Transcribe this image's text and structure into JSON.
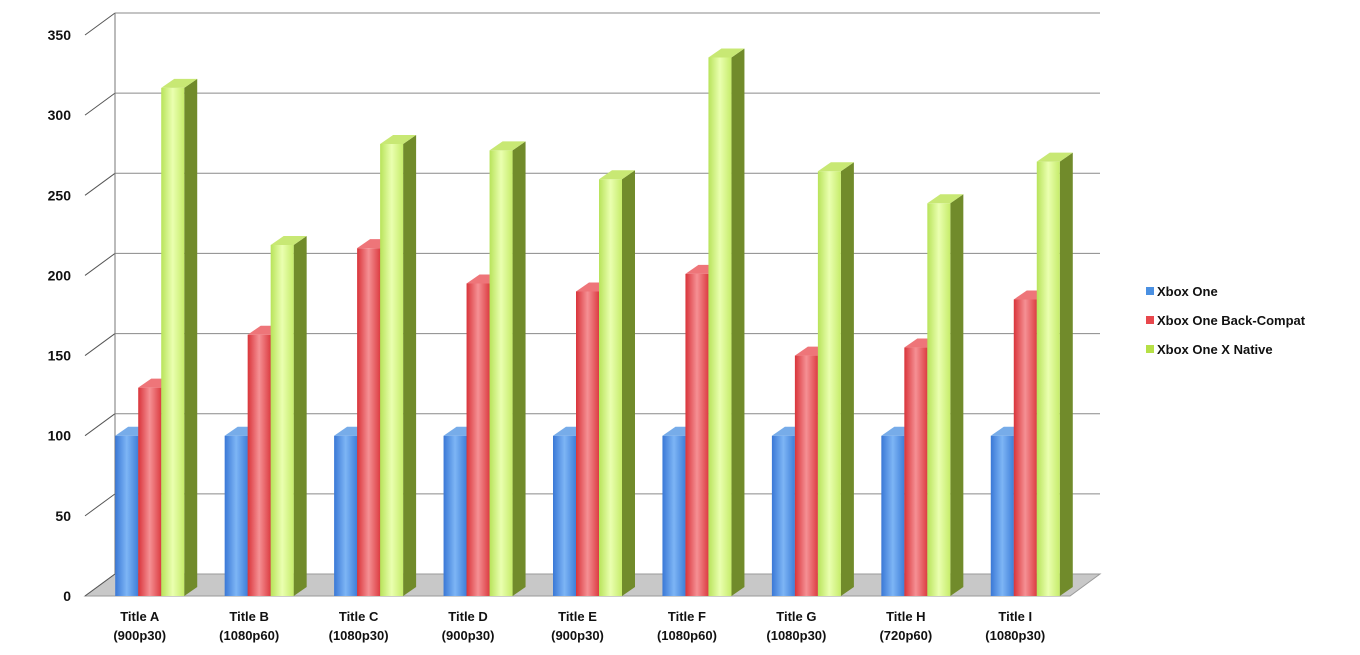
{
  "chart_data": {
    "type": "bar",
    "style": "3d-clustered-column",
    "title": "",
    "xlabel": "",
    "ylabel": "",
    "ylim": [
      0,
      350
    ],
    "yticks": [
      0,
      50,
      100,
      150,
      200,
      250,
      300,
      350
    ],
    "grid": true,
    "legend_position": "right",
    "categories": [
      {
        "name": "Title A",
        "sub": "(900p30)"
      },
      {
        "name": "Title B",
        "sub": "(1080p60)"
      },
      {
        "name": "Title C",
        "sub": "(1080p30)"
      },
      {
        "name": "Title D",
        "sub": "(900p30)"
      },
      {
        "name": "Title E",
        "sub": "(900p30)"
      },
      {
        "name": "Title F",
        "sub": "(1080p60)"
      },
      {
        "name": "Title G",
        "sub": "(1080p30)"
      },
      {
        "name": "Title H",
        "sub": "(720p60)"
      },
      {
        "name": "Title I",
        "sub": "(1080p30)"
      }
    ],
    "series": [
      {
        "name": "Xbox One",
        "color": "#4a90e2",
        "values": [
          100,
          100,
          100,
          100,
          100,
          100,
          100,
          100,
          100
        ]
      },
      {
        "name": "Xbox One Back-Compat",
        "color": "#e8474c",
        "values": [
          130,
          163,
          217,
          195,
          190,
          201,
          150,
          155,
          185
        ]
      },
      {
        "name": "Xbox One X Native",
        "color": "#b6e046",
        "values": [
          317,
          219,
          282,
          278,
          260,
          336,
          265,
          245,
          271
        ]
      }
    ]
  }
}
